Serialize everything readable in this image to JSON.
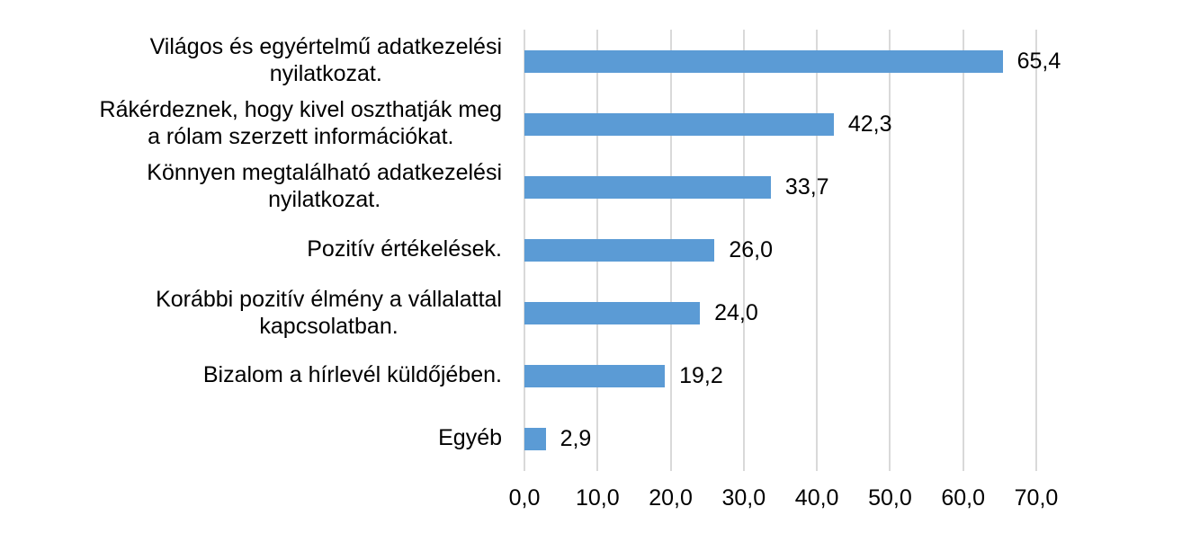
{
  "chart_data": {
    "type": "bar",
    "orientation": "horizontal",
    "title": "",
    "xlabel": "",
    "ylabel": "",
    "xlim": [
      0,
      70
    ],
    "grid": true,
    "legend": null,
    "bar_color": "#5b9bd5",
    "categories": [
      "Világos és egyértelmű adatkezelési nyilatkozat.",
      "Rákérdeznek, hogy kivel oszthatják meg a rólam szerzett információkat.",
      "Könnyen megtalálható adatkezelési nyilatkozat.",
      "Pozitív értékelések.",
      "Korábbi pozitív élmény a vállalattal kapcsolatban.",
      "Bizalom a hírlevél küldőjében.",
      "Egyéb"
    ],
    "values": [
      65.4,
      42.3,
      33.7,
      26.0,
      24.0,
      19.2,
      2.9
    ],
    "value_labels": [
      "65,4",
      "42,3",
      "33,7",
      "26,0",
      "24,0",
      "19,2",
      "2,9"
    ],
    "x_ticks": [
      "0,0",
      "10,0",
      "20,0",
      "30,0",
      "40,0",
      "50,0",
      "60,0",
      "70,0"
    ]
  },
  "labels": [
    {
      "line1": "Világos és egyértelmű adatkezelési",
      "line2": "nyilatkozat."
    },
    {
      "line1": "Rákérdeznek, hogy kivel oszthatják meg",
      "line2": "a rólam szerzett információkat."
    },
    {
      "line1": "Könnyen megtalálható adatkezelési",
      "line2": "nyilatkozat."
    },
    {
      "line1": "Pozitív értékelések.",
      "line2": ""
    },
    {
      "line1": "Korábbi pozitív élmény a vállalattal",
      "line2": "kapcsolatban."
    },
    {
      "line1": "Bizalom a hírlevél küldőjében.",
      "line2": ""
    },
    {
      "line1": "Egyéb",
      "line2": ""
    }
  ]
}
